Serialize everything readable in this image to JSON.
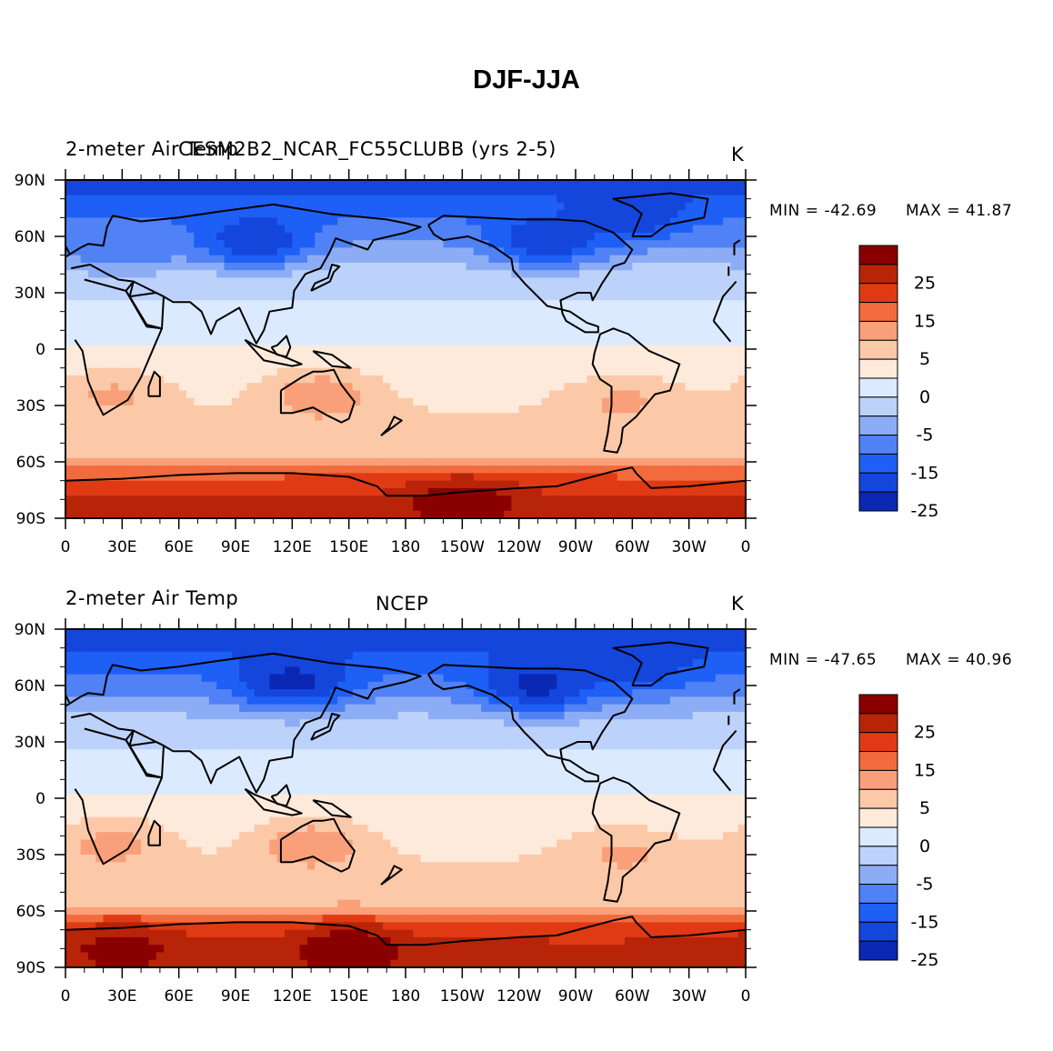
{
  "figure_title": "DJF-JJA",
  "colors": {
    "levels": [
      -30,
      -25,
      -20,
      -15,
      -10,
      -5,
      0,
      5,
      10,
      15,
      20,
      25,
      30
    ],
    "palette": [
      "#00008f",
      "#0a28b4",
      "#1446dc",
      "#1e5ff5",
      "#5082f5",
      "#8cadf5",
      "#bcd2fa",
      "#dceaff",
      "#fdeadb",
      "#fcc9a8",
      "#f9a07a",
      "#f26b3c",
      "#e03a14",
      "#b82408",
      "#8a0000"
    ]
  },
  "chart_data": [
    {
      "type": "heatmap",
      "title": "CESM2B2_NCAR_FC55CLUBB (yrs 2-5)",
      "left_string": "2-meter Air Temp",
      "units": "K",
      "min_label": "MIN = -42.69",
      "max_label": "MAX =  41.87",
      "x_ticks": [
        "0",
        "30E",
        "60E",
        "90E",
        "120E",
        "150E",
        "180",
        "150W",
        "120W",
        "90W",
        "60W",
        "30W",
        "0"
      ],
      "y_ticks": [
        "90N",
        "60N",
        "30N",
        "0",
        "30S",
        "60S",
        "90S"
      ],
      "colorbar_labels": [
        "25",
        "15",
        "5",
        "0",
        "-5",
        "-15",
        "-25"
      ],
      "lat_bands": [
        {
          "lat": 85,
          "value": -26
        },
        {
          "lat": 70,
          "value": -20
        },
        {
          "lat": 55,
          "value": -14
        },
        {
          "lat": 40,
          "value": -7
        },
        {
          "lat": 22,
          "value": -4
        },
        {
          "lat": 8,
          "value": -1
        },
        {
          "lat": -5,
          "value": 1
        },
        {
          "lat": -20,
          "value": 3
        },
        {
          "lat": -40,
          "value": 6
        },
        {
          "lat": -58,
          "value": 9
        },
        {
          "lat": -68,
          "value": 20
        },
        {
          "lat": -80,
          "value": 26
        }
      ],
      "anomalies": [
        {
          "lon": 100,
          "lat": 58,
          "value": -30
        },
        {
          "lon": 255,
          "lat": 58,
          "value": -30
        },
        {
          "lon": 300,
          "lat": 72,
          "value": -29
        },
        {
          "lon": 30,
          "lat": 55,
          "value": -20
        },
        {
          "lon": 135,
          "lat": -25,
          "value": 14
        },
        {
          "lon": 25,
          "lat": -25,
          "value": 11
        },
        {
          "lon": 295,
          "lat": -28,
          "value": 11
        },
        {
          "lon": 210,
          "lat": -82,
          "value": 34
        }
      ]
    },
    {
      "type": "heatmap",
      "title": "NCEP",
      "left_string": "2-meter Air Temp",
      "units": "K",
      "min_label": "MIN = -47.65",
      "max_label": "MAX =  40.96",
      "x_ticks": [
        "0",
        "30E",
        "60E",
        "90E",
        "120E",
        "150E",
        "180",
        "150W",
        "120W",
        "90W",
        "60W",
        "30W",
        "0"
      ],
      "y_ticks": [
        "90N",
        "60N",
        "30N",
        "0",
        "30S",
        "60S",
        "90S"
      ],
      "colorbar_labels": [
        "25",
        "15",
        "5",
        "0",
        "-5",
        "-15",
        "-25"
      ],
      "lat_bands": [
        {
          "lat": 85,
          "value": -27
        },
        {
          "lat": 70,
          "value": -22
        },
        {
          "lat": 55,
          "value": -15
        },
        {
          "lat": 40,
          "value": -8
        },
        {
          "lat": 22,
          "value": -4
        },
        {
          "lat": 8,
          "value": -1
        },
        {
          "lat": -5,
          "value": 1
        },
        {
          "lat": -20,
          "value": 3
        },
        {
          "lat": -40,
          "value": 6
        },
        {
          "lat": -58,
          "value": 9
        },
        {
          "lat": -68,
          "value": 21
        },
        {
          "lat": -80,
          "value": 27
        }
      ],
      "anomalies": [
        {
          "lon": 120,
          "lat": 62,
          "value": -32
        },
        {
          "lon": 250,
          "lat": 60,
          "value": -32
        },
        {
          "lon": 300,
          "lat": 72,
          "value": -30
        },
        {
          "lon": 130,
          "lat": -25,
          "value": 14
        },
        {
          "lon": 25,
          "lat": -25,
          "value": 12
        },
        {
          "lon": 295,
          "lat": -30,
          "value": 11
        },
        {
          "lon": 150,
          "lat": -80,
          "value": 34
        },
        {
          "lon": 30,
          "lat": -80,
          "value": 32
        }
      ]
    }
  ]
}
